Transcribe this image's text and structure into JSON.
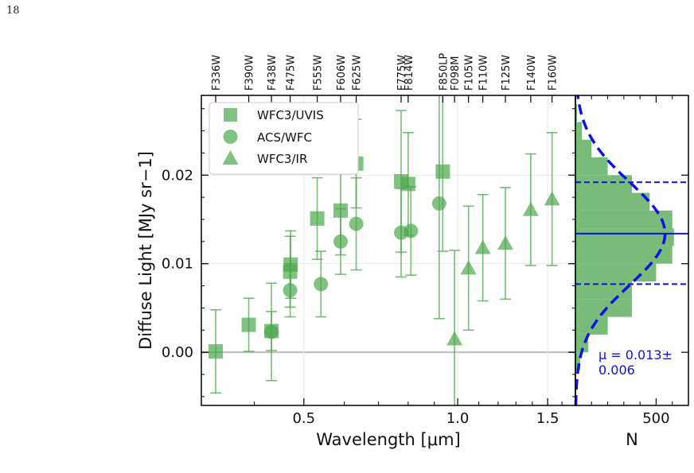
{
  "page_number": "18",
  "chart_data": [
    {
      "type": "scatter",
      "xlabel": "Wavelength [μm]",
      "ylabel": "Diffuse Light [MJy sr−1]",
      "x_scale": "log",
      "xlim": [
        0.315,
        1.7
      ],
      "ylim": [
        -0.006,
        0.029
      ],
      "x_ticks": [
        {
          "value": 0.5,
          "label": "0.5"
        },
        {
          "value": 1.0,
          "label": "1.0"
        },
        {
          "value": 1.5,
          "label": "1.5"
        }
      ],
      "y_ticks": [
        {
          "value": 0.0,
          "label": "0.00"
        },
        {
          "value": 0.01,
          "label": "0.01"
        },
        {
          "value": 0.02,
          "label": "0.02"
        }
      ],
      "zero_line": 0.0,
      "grid": true,
      "legend": {
        "location": "top-left",
        "entries": [
          "WFC3/UVIS",
          "ACS/WFC",
          "WFC3/IR"
        ]
      },
      "top_axis_filters": [
        {
          "name": "F336W",
          "wavelength": 0.336
        },
        {
          "name": "F390W",
          "wavelength": 0.39
        },
        {
          "name": "F438W",
          "wavelength": 0.432
        },
        {
          "name": "F475W",
          "wavelength": 0.47
        },
        {
          "name": "F555W",
          "wavelength": 0.531
        },
        {
          "name": "F606W",
          "wavelength": 0.59
        },
        {
          "name": "F625W",
          "wavelength": 0.633
        },
        {
          "name": "F775W",
          "wavelength": 0.775
        },
        {
          "name": "F814W",
          "wavelength": 0.8
        },
        {
          "name": "F850LP",
          "wavelength": 0.935
        },
        {
          "name": "F098M",
          "wavelength": 0.986
        },
        {
          "name": "F105W",
          "wavelength": 1.05
        },
        {
          "name": "F110W",
          "wavelength": 1.12
        },
        {
          "name": "F125W",
          "wavelength": 1.24
        },
        {
          "name": "F140W",
          "wavelength": 1.39
        },
        {
          "name": "F160W",
          "wavelength": 1.53
        }
      ],
      "series": [
        {
          "name": "WFC3/UVIS",
          "marker": "square",
          "color": "#4ca64c",
          "points": [
            {
              "x": 0.336,
              "y": 0.0001,
              "err": 0.0047
            },
            {
              "x": 0.39,
              "y": 0.0031,
              "err": 0.003
            },
            {
              "x": 0.432,
              "y": 0.0024,
              "err": 0.0022
            },
            {
              "x": 0.47,
              "y": 0.0091,
              "err": 0.004
            },
            {
              "x": 0.471,
              "y": 0.0099,
              "err": 0.0038
            },
            {
              "x": 0.531,
              "y": 0.0151,
              "err": 0.0046
            },
            {
              "x": 0.59,
              "y": 0.016,
              "err": 0.005
            },
            {
              "x": 0.633,
              "y": 0.0213,
              "err": 0.005
            },
            {
              "x": 0.775,
              "y": 0.0193,
              "err": 0.008
            },
            {
              "x": 0.8,
              "y": 0.019,
              "err": 0.0058
            },
            {
              "x": 0.935,
              "y": 0.0204,
              "err": 0.009
            }
          ]
        },
        {
          "name": "ACS/WFC",
          "marker": "circle",
          "color": "#4ca64c",
          "points": [
            {
              "x": 0.432,
              "y": 0.0023,
              "err": 0.0055
            },
            {
              "x": 0.47,
              "y": 0.007,
              "err": 0.003
            },
            {
              "x": 0.54,
              "y": 0.0077,
              "err": 0.0037
            },
            {
              "x": 0.59,
              "y": 0.0125,
              "err": 0.0037
            },
            {
              "x": 0.633,
              "y": 0.0145,
              "err": 0.0052
            },
            {
              "x": 0.775,
              "y": 0.0135,
              "err": 0.005
            },
            {
              "x": 0.81,
              "y": 0.0137,
              "err": 0.005
            },
            {
              "x": 0.92,
              "y": 0.0168,
              "err": 0.013
            }
          ]
        },
        {
          "name": "WFC3/IR",
          "marker": "triangle",
          "color": "#4ca64c",
          "points": [
            {
              "x": 0.986,
              "y": 0.0015,
              "err": 0.01
            },
            {
              "x": 1.05,
              "y": 0.0095,
              "err": 0.007
            },
            {
              "x": 1.12,
              "y": 0.0118,
              "err": 0.006
            },
            {
              "x": 1.24,
              "y": 0.0123,
              "err": 0.0063
            },
            {
              "x": 1.39,
              "y": 0.0161,
              "err": 0.0063
            },
            {
              "x": 1.53,
              "y": 0.0173,
              "err": 0.0075
            }
          ]
        }
      ]
    },
    {
      "type": "bar",
      "orientation": "horizontal",
      "xlabel": "N",
      "x_ticks": [
        {
          "value": 500,
          "label": "500"
        }
      ],
      "xlim": [
        0,
        700
      ],
      "ylim": [
        -0.006,
        0.029
      ],
      "bin_width": 0.002,
      "bins": [
        {
          "y0": -0.002,
          "count": 30
        },
        {
          "y0": 0.0,
          "count": 80
        },
        {
          "y0": 0.002,
          "count": 200
        },
        {
          "y0": 0.004,
          "count": 350
        },
        {
          "y0": 0.006,
          "count": 350
        },
        {
          "y0": 0.008,
          "count": 500
        },
        {
          "y0": 0.01,
          "count": 600
        },
        {
          "y0": 0.012,
          "count": 610
        },
        {
          "y0": 0.014,
          "count": 600
        },
        {
          "y0": 0.016,
          "count": 460
        },
        {
          "y0": 0.018,
          "count": 350
        },
        {
          "y0": 0.02,
          "count": 200
        },
        {
          "y0": 0.022,
          "count": 100
        },
        {
          "y0": 0.024,
          "count": 40
        },
        {
          "y0": 0.026,
          "count": 10
        }
      ],
      "gaussian_fit": {
        "mu": 0.0134,
        "sigma": 0.0058,
        "peak": 555,
        "color": "#0a12e6"
      },
      "mean_line": 0.0134,
      "sigma_lines": [
        0.0077,
        0.0192
      ],
      "annotation": [
        "μ = 0.013±",
        "0.006"
      ]
    }
  ]
}
